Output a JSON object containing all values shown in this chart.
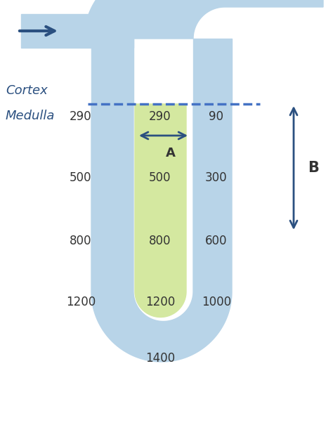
{
  "bg_color": "#ffffff",
  "tube_color": "#b8d4e8",
  "inner_color": "#d4e8a0",
  "arrow_color": "#2b5080",
  "dashed_color": "#4472c4",
  "cortex_label": "Cortex",
  "medulla_label": "Medulla",
  "label_A": "A",
  "label_B": "B",
  "text_color": "#333333",
  "font_size": 12,
  "figw": 4.74,
  "figh": 6.05,
  "dpi": 100
}
